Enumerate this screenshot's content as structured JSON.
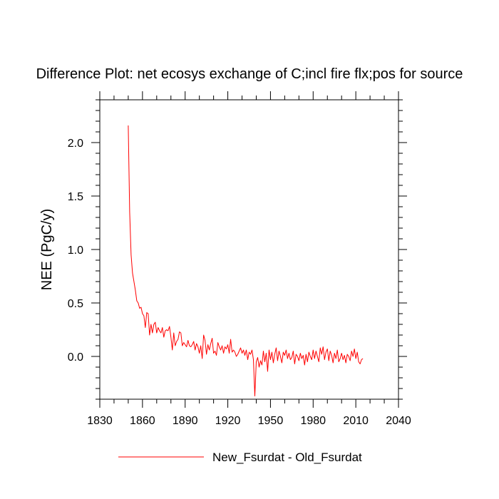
{
  "chart_data": {
    "type": "line",
    "title": "Difference Plot: net ecosys exchange of C;incl fire flx;pos for source",
    "xlabel": "",
    "ylabel": "NEE  (PgC/y)",
    "xlim": [
      1830,
      2040
    ],
    "ylim": [
      -0.4,
      2.4
    ],
    "x_ticks": [
      1830,
      1860,
      1890,
      1920,
      1950,
      1980,
      2010,
      2040
    ],
    "y_ticks": [
      0.0,
      0.5,
      1.0,
      1.5,
      2.0
    ],
    "x_tick_labels": [
      "1830",
      "1860",
      "1890",
      "1920",
      "1950",
      "1980",
      "2010",
      "2040"
    ],
    "y_tick_labels": [
      "0.0",
      "0.5",
      "1.0",
      "1.5",
      "2.0"
    ],
    "grid": false,
    "legend": "bottom-center",
    "series": [
      {
        "name": "New_Fsurdat - Old_Fsurdat",
        "color": "#ff0000",
        "x_start": 1850,
        "x_step": 1,
        "values": [
          2.16,
          1.35,
          0.95,
          0.78,
          0.7,
          0.62,
          0.52,
          0.5,
          0.45,
          0.46,
          0.4,
          0.38,
          0.27,
          0.41,
          0.4,
          0.2,
          0.3,
          0.22,
          0.3,
          0.32,
          0.22,
          0.27,
          0.24,
          0.22,
          0.27,
          0.18,
          0.24,
          0.25,
          0.24,
          0.28,
          0.18,
          0.06,
          0.22,
          0.1,
          0.14,
          0.16,
          0.23,
          0.22,
          0.1,
          0.13,
          0.11,
          0.09,
          0.15,
          0.1,
          0.09,
          0.11,
          0.14,
          0.06,
          0.12,
          0.09,
          0.03,
          0.1,
          -0.02,
          0.2,
          0.15,
          0.02,
          0.11,
          0.06,
          0.12,
          0.17,
          0.03,
          0.05,
          0.01,
          0.13,
          0.09,
          0.06,
          0.1,
          0.03,
          0.09,
          0.07,
          0.11,
          0.03,
          0.16,
          0.04,
          0.06,
          0.04,
          0.0,
          0.02,
          0.05,
          0.08,
          0.03,
          0.06,
          0.01,
          0.06,
          -0.03,
          0.04,
          0.02,
          0.06,
          -0.03,
          -0.37,
          -0.05,
          -0.01,
          -0.1,
          -0.04,
          -0.08,
          0.05,
          -0.05,
          0.03,
          -0.14,
          0.06,
          -0.03,
          0.04,
          -0.06,
          0.02,
          0.08,
          -0.04,
          0.05,
          0.0,
          -0.06,
          0.04,
          0.01,
          0.06,
          -0.02,
          0.03,
          -0.03,
          -0.01,
          0.05,
          -0.07,
          0.02,
          0.0,
          -0.04,
          0.03,
          -0.02,
          0.01,
          -0.08,
          0.02,
          -0.05,
          0.04,
          0.0,
          -0.03,
          0.06,
          -0.02,
          0.05,
          0.0,
          -0.05,
          0.08,
          0.02,
          0.09,
          -0.03,
          0.04,
          0.07,
          -0.04,
          0.05,
          0.01,
          -0.06,
          0.03,
          -0.02,
          0.06,
          -0.05,
          -0.02,
          0.03,
          -0.03,
          0.01,
          -0.06,
          0.02,
          0.0,
          -0.04,
          0.05,
          0.0,
          0.07,
          -0.02,
          0.04,
          -0.05,
          -0.07,
          -0.03,
          -0.02
        ]
      }
    ]
  }
}
